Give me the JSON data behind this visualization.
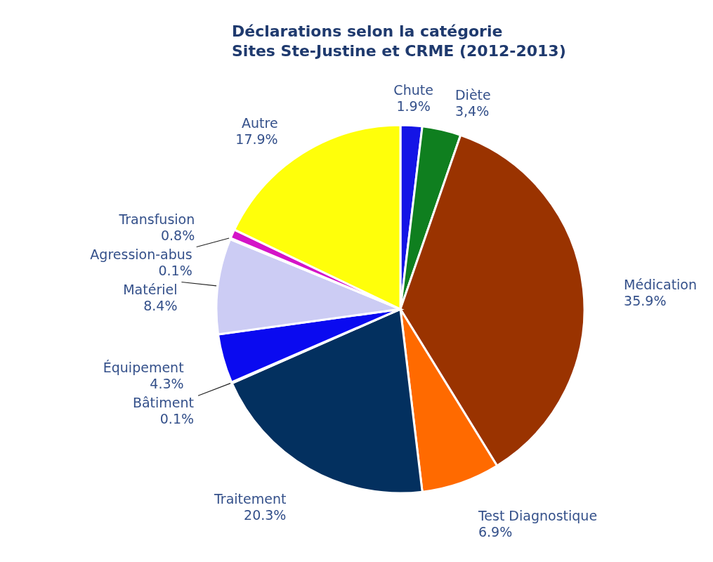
{
  "chart_data": {
    "type": "pie",
    "title": "Déclarations selon la catégorie",
    "subtitle": "Sites Ste-Justine et CRME (2012-2013)",
    "categories": [
      "Chute",
      "Diète",
      "Médication",
      "Test Diagnostique",
      "Traitement",
      "Bâtiment",
      "Équipement",
      "Matériel",
      "Agression-abus",
      "Transfusion",
      "Autre"
    ],
    "values": [
      1.9,
      3.4,
      35.9,
      6.9,
      20.3,
      0.1,
      4.3,
      8.4,
      0.1,
      0.8,
      17.9
    ],
    "value_labels": [
      "1.9%",
      "3,4%",
      "35.9%",
      "6.9%",
      "20.3%",
      "0.1%",
      "4.3%",
      "8.4%",
      "0.1%",
      "0.8%",
      "17.9%"
    ],
    "colors": [
      "#1414e6",
      "#0f7f1f",
      "#9a3300",
      "#ff6a00",
      "#03305f",
      "#404040",
      "#0a0af0",
      "#ccccf4",
      "#000060",
      "#d414c8",
      "#ffff0a"
    ]
  }
}
